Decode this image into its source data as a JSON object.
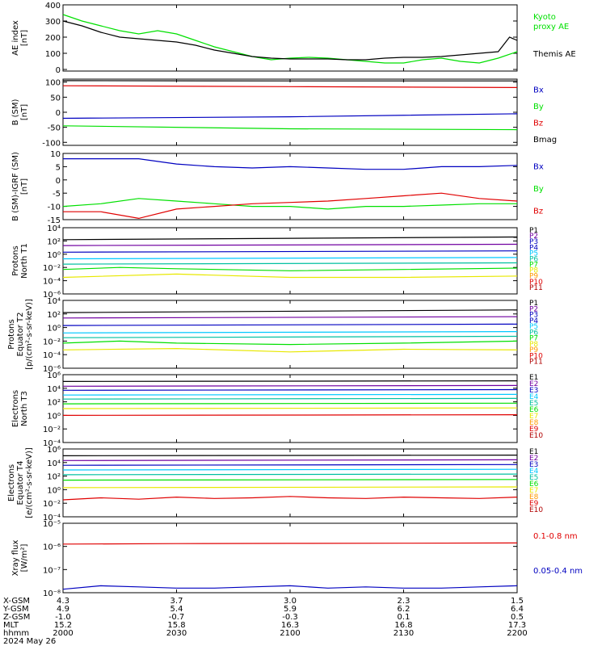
{
  "colors": {
    "black": "#000000",
    "green": "#00e000",
    "blue": "#0000c0",
    "red": "#e00000",
    "purple": "#7000a0",
    "cyan": "#00c8ff",
    "teal": "#00c0a0",
    "yellow": "#e8e800",
    "orange": "#ff9a00",
    "dark_red": "#b00000"
  },
  "chart_data": [
    {
      "type": "line",
      "id": "ae",
      "ylabel": "AE index [nT]",
      "ylim": [
        -10,
        400
      ],
      "yticks": [
        0,
        100,
        200,
        300,
        400
      ],
      "ytick_labels": [
        "0",
        "100",
        "200",
        "300",
        "400"
      ],
      "series": [
        {
          "name": "Kyoto proxy AE",
          "color": "#00e000",
          "x": [
            0,
            5,
            10,
            15,
            20,
            25,
            30,
            35,
            40,
            45,
            50,
            55,
            60,
            65,
            70,
            75,
            80,
            85,
            90,
            95,
            100,
            105,
            110,
            115,
            120
          ],
          "y": [
            340,
            300,
            270,
            240,
            220,
            240,
            220,
            180,
            140,
            110,
            80,
            60,
            70,
            75,
            70,
            60,
            50,
            40,
            40,
            60,
            70,
            50,
            40,
            70,
            110
          ]
        },
        {
          "name": "Themis AE",
          "color": "#000000",
          "x": [
            0,
            5,
            10,
            15,
            20,
            25,
            30,
            35,
            40,
            45,
            50,
            55,
            60,
            65,
            70,
            75,
            80,
            85,
            90,
            95,
            100,
            105,
            110,
            115,
            118,
            120
          ],
          "y": [
            300,
            270,
            230,
            200,
            190,
            180,
            170,
            150,
            120,
            100,
            80,
            70,
            65,
            65,
            65,
            60,
            60,
            70,
            75,
            75,
            80,
            90,
            100,
            110,
            200,
            180
          ]
        }
      ]
    },
    {
      "type": "line",
      "id": "bsm",
      "ylabel": "B (SM) [nT]",
      "ylim": [
        -110,
        110
      ],
      "yticks": [
        -100,
        -50,
        0,
        50,
        100
      ],
      "ytick_labels": [
        "-100",
        "-50",
        "0",
        "50",
        "100"
      ],
      "series": [
        {
          "name": "Bx",
          "color": "#0000c0",
          "x": [
            0,
            60,
            120
          ],
          "y": [
            -20,
            -15,
            -5
          ]
        },
        {
          "name": "By",
          "color": "#00e000",
          "x": [
            0,
            60,
            120
          ],
          "y": [
            -45,
            -55,
            -58
          ]
        },
        {
          "name": "Bz",
          "color": "#e00000",
          "x": [
            0,
            60,
            120
          ],
          "y": [
            88,
            85,
            82
          ]
        },
        {
          "name": "Bmag",
          "color": "#000000",
          "x": [
            0,
            60,
            120
          ],
          "y": [
            105,
            104,
            104
          ]
        }
      ]
    },
    {
      "type": "line",
      "id": "bdiff",
      "ylabel": "B (SM)-IGRF (SM) [nT]",
      "ylim": [
        -15,
        10
      ],
      "yticks": [
        -15,
        -10,
        -5,
        0,
        5,
        10
      ],
      "ytick_labels": [
        "-15",
        "-10",
        "-5",
        "0",
        "5",
        "10"
      ],
      "series": [
        {
          "name": "Bx",
          "color": "#0000c0",
          "x": [
            0,
            10,
            20,
            30,
            40,
            50,
            60,
            70,
            80,
            90,
            100,
            110,
            120
          ],
          "y": [
            8,
            8,
            8,
            6,
            5,
            4.5,
            5,
            4.5,
            4,
            4,
            5,
            5,
            5.5
          ]
        },
        {
          "name": "By",
          "color": "#00e000",
          "x": [
            0,
            10,
            20,
            30,
            40,
            50,
            60,
            70,
            80,
            90,
            100,
            110,
            120
          ],
          "y": [
            -10,
            -9,
            -7,
            -8,
            -9,
            -10,
            -10,
            -11,
            -10,
            -10,
            -9.5,
            -9,
            -9
          ]
        },
        {
          "name": "Bz",
          "color": "#e00000",
          "x": [
            0,
            10,
            20,
            30,
            40,
            50,
            60,
            70,
            80,
            90,
            100,
            110,
            120
          ],
          "y": [
            -12,
            -12,
            -14.5,
            -11,
            -10,
            -9,
            -8.5,
            -8,
            -7,
            -6,
            -5,
            -7,
            -8
          ]
        }
      ]
    },
    {
      "type": "line",
      "id": "pn",
      "ylabel": "Protons North T1",
      "log": true,
      "ylim": [
        -6,
        4
      ],
      "yticks": [
        -6,
        -4,
        -2,
        0,
        2,
        4
      ],
      "ytick_labels": [
        "10⁻⁶",
        "10⁻⁴",
        "10⁻²",
        "10⁰",
        "10²",
        "10⁴"
      ],
      "legend": [
        "P1",
        "P2",
        "P3",
        "P4",
        "P5",
        "P6",
        "P7",
        "P8",
        "P9",
        "P10",
        "P11"
      ],
      "legend_colors": [
        "#000000",
        "#7000a0",
        "#0000c0",
        "#0000c0",
        "#00c8ff",
        "#00c0a0",
        "#00e000",
        "#e8e800",
        "#ff9a00",
        "#e00000",
        "#b00000"
      ],
      "series": [
        {
          "name": "P1",
          "color": "#000000",
          "x": [
            0,
            120
          ],
          "y": [
            2.2,
            2.6
          ]
        },
        {
          "name": "P2",
          "color": "#7000a0",
          "x": [
            0,
            120
          ],
          "y": [
            1.3,
            1.5
          ]
        },
        {
          "name": "P3",
          "color": "#0000c0",
          "x": [
            0,
            120
          ],
          "y": [
            0.3,
            0.5
          ]
        },
        {
          "name": "P4",
          "color": "#00c8ff",
          "x": [
            0,
            120
          ],
          "y": [
            -0.7,
            -0.5
          ]
        },
        {
          "name": "P5",
          "color": "#00c0a0",
          "x": [
            0,
            120
          ],
          "y": [
            -1.5,
            -1.3
          ]
        },
        {
          "name": "P6",
          "color": "#00e000",
          "x": [
            0,
            15,
            30,
            60,
            90,
            120
          ],
          "y": [
            -2.3,
            -2.0,
            -2.2,
            -2.5,
            -2.3,
            -2.1
          ]
        },
        {
          "name": "P7",
          "color": "#e8e800",
          "x": [
            0,
            30,
            60,
            90,
            120
          ],
          "y": [
            -3.5,
            -3.0,
            -3.5,
            -3.5,
            -3.3
          ]
        }
      ]
    },
    {
      "type": "line",
      "id": "pe",
      "ylabel": "Protons Equator T2 [p/(cm²-s-sr-keV)]",
      "log": true,
      "ylim": [
        -6,
        4
      ],
      "yticks": [
        -6,
        -4,
        -2,
        0,
        2,
        4
      ],
      "ytick_labels": [
        "10⁻⁶",
        "10⁻⁴",
        "10⁻²",
        "10⁰",
        "10²",
        "10⁴"
      ],
      "legend": [
        "P1",
        "P2",
        "P3",
        "P4",
        "P5",
        "P6",
        "P7",
        "P8",
        "P9",
        "P10",
        "P11"
      ],
      "legend_colors": [
        "#000000",
        "#7000a0",
        "#0000c0",
        "#0000c0",
        "#00c8ff",
        "#00c0a0",
        "#00e000",
        "#e8e800",
        "#ff9a00",
        "#e00000",
        "#b00000"
      ],
      "series": [
        {
          "name": "P1",
          "color": "#000000",
          "x": [
            0,
            120
          ],
          "y": [
            2.2,
            2.6
          ]
        },
        {
          "name": "P2",
          "color": "#7000a0",
          "x": [
            0,
            120
          ],
          "y": [
            1.4,
            1.6
          ]
        },
        {
          "name": "P3",
          "color": "#0000c0",
          "x": [
            0,
            120
          ],
          "y": [
            0.3,
            0.5
          ]
        },
        {
          "name": "P4",
          "color": "#00c8ff",
          "x": [
            0,
            120
          ],
          "y": [
            -0.8,
            -0.6
          ]
        },
        {
          "name": "P5",
          "color": "#00c0a0",
          "x": [
            0,
            120
          ],
          "y": [
            -1.5,
            -1.3
          ]
        },
        {
          "name": "P6",
          "color": "#00e000",
          "x": [
            0,
            15,
            30,
            60,
            90,
            120
          ],
          "y": [
            -2.3,
            -2.0,
            -2.3,
            -2.5,
            -2.3,
            -2.0
          ]
        },
        {
          "name": "P7",
          "color": "#e8e800",
          "x": [
            0,
            30,
            60,
            90,
            120
          ],
          "y": [
            -3.3,
            -3.1,
            -3.6,
            -3.2,
            -3.3
          ]
        }
      ]
    },
    {
      "type": "line",
      "id": "en",
      "ylabel": "Electrons North T3",
      "log": true,
      "ylim": [
        -4,
        6
      ],
      "yticks": [
        -4,
        -2,
        0,
        2,
        4,
        6
      ],
      "ytick_labels": [
        "10⁻⁴",
        "10⁻²",
        "10⁰",
        "10²",
        "10⁴",
        "10⁶"
      ],
      "legend": [
        "E1",
        "E2",
        "E3",
        "E4",
        "E5",
        "E6",
        "E7",
        "E8",
        "E9",
        "E10"
      ],
      "legend_colors": [
        "#000000",
        "#7000a0",
        "#0000c0",
        "#00c8ff",
        "#00c0a0",
        "#00e000",
        "#e8e800",
        "#ff9a00",
        "#e00000",
        "#b00000"
      ],
      "series": [
        {
          "name": "E1",
          "color": "#000000",
          "x": [
            0,
            120
          ],
          "y": [
            5.0,
            5.1
          ]
        },
        {
          "name": "E2",
          "color": "#7000a0",
          "x": [
            0,
            120
          ],
          "y": [
            4.3,
            4.4
          ]
        },
        {
          "name": "E3",
          "color": "#0000c0",
          "x": [
            0,
            120
          ],
          "y": [
            3.7,
            3.8
          ]
        },
        {
          "name": "E4",
          "color": "#00c8ff",
          "x": [
            0,
            120
          ],
          "y": [
            3.0,
            3.1
          ]
        },
        {
          "name": "E5",
          "color": "#00c0a0",
          "x": [
            0,
            120
          ],
          "y": [
            2.4,
            2.5
          ]
        },
        {
          "name": "E6",
          "color": "#00e000",
          "x": [
            0,
            120
          ],
          "y": [
            1.7,
            1.8
          ]
        },
        {
          "name": "E7",
          "color": "#e8e800",
          "x": [
            0,
            120
          ],
          "y": [
            1.0,
            1.1
          ]
        },
        {
          "name": "E8",
          "color": "#e00000",
          "x": [
            0,
            120
          ],
          "y": [
            0.0,
            0.1
          ]
        }
      ]
    },
    {
      "type": "line",
      "id": "ee",
      "ylabel": "Electrons Equator T4 [e/(cm²-s-sr-keV)]",
      "log": true,
      "ylim": [
        -4,
        6
      ],
      "yticks": [
        -4,
        -2,
        0,
        2,
        4,
        6
      ],
      "ytick_labels": [
        "10⁻⁴",
        "10⁻²",
        "10⁰",
        "10²",
        "10⁴",
        "10⁶"
      ],
      "legend": [
        "E1",
        "E2",
        "E3",
        "E4",
        "E5",
        "E6",
        "E7",
        "E8",
        "E9",
        "E10"
      ],
      "legend_colors": [
        "#000000",
        "#7000a0",
        "#0000c0",
        "#00c8ff",
        "#00c0a0",
        "#00e000",
        "#e8e800",
        "#ff9a00",
        "#e00000",
        "#b00000"
      ],
      "series": [
        {
          "name": "E1",
          "color": "#000000",
          "x": [
            0,
            120
          ],
          "y": [
            5.0,
            5.1
          ]
        },
        {
          "name": "E2",
          "color": "#7000a0",
          "x": [
            0,
            120
          ],
          "y": [
            4.3,
            4.4
          ]
        },
        {
          "name": "E3",
          "color": "#0000c0",
          "x": [
            0,
            120
          ],
          "y": [
            3.6,
            3.7
          ]
        },
        {
          "name": "E4",
          "color": "#00c8ff",
          "x": [
            0,
            120
          ],
          "y": [
            2.9,
            3.0
          ]
        },
        {
          "name": "E5",
          "color": "#00c0a0",
          "x": [
            0,
            120
          ],
          "y": [
            2.2,
            2.3
          ]
        },
        {
          "name": "E6",
          "color": "#00e000",
          "x": [
            0,
            120
          ],
          "y": [
            1.4,
            1.5
          ]
        },
        {
          "name": "E7",
          "color": "#e8e800",
          "x": [
            0,
            120
          ],
          "y": [
            0.3,
            0.4
          ]
        },
        {
          "name": "E8",
          "color": "#e00000",
          "x": [
            0,
            10,
            20,
            30,
            40,
            50,
            60,
            70,
            80,
            90,
            100,
            110,
            120
          ],
          "y": [
            -1.5,
            -1.2,
            -1.4,
            -1.1,
            -1.3,
            -1.2,
            -1.0,
            -1.2,
            -1.3,
            -1.1,
            -1.2,
            -1.3,
            -1.1
          ]
        }
      ]
    },
    {
      "type": "line",
      "id": "xray",
      "ylabel": "Xray flux [W/m²]",
      "log": true,
      "ylim": [
        -8,
        -5
      ],
      "yticks": [
        -8,
        -7,
        -6,
        -5
      ],
      "ytick_labels": [
        "10⁻⁸",
        "10⁻⁷",
        "10⁻⁶",
        "10⁻⁵"
      ],
      "series": [
        {
          "name": "0.1-0.8 nm",
          "color": "#e00000",
          "x": [
            0,
            30,
            60,
            90,
            120
          ],
          "y": [
            -5.9,
            -5.88,
            -5.87,
            -5.86,
            -5.85
          ]
        },
        {
          "name": "0.05-0.4 nm",
          "color": "#0000c0",
          "x": [
            0,
            10,
            20,
            30,
            40,
            50,
            60,
            70,
            80,
            90,
            100,
            110,
            120
          ],
          "y": [
            -7.85,
            -7.7,
            -7.75,
            -7.8,
            -7.8,
            -7.75,
            -7.7,
            -7.8,
            -7.75,
            -7.8,
            -7.8,
            -7.75,
            -7.7
          ]
        }
      ]
    }
  ],
  "panel_labels": {
    "ae": [
      "AE index",
      "[nT]"
    ],
    "bsm": [
      "B (SM)",
      "[nT]"
    ],
    "bdiff": [
      "B (SM)-IGRF (SM)",
      "[nT]"
    ],
    "pn": [
      "Protons",
      "North T1"
    ],
    "pe": [
      "Protons",
      "Equator T2",
      "[p/(cm²-s-sr-keV)]"
    ],
    "en": [
      "Electrons",
      "North T3"
    ],
    "ee": [
      "Electrons",
      "Equator T4",
      "[e/(cm²-s-sr-keV)]"
    ],
    "xray": [
      "Xray flux",
      "[W/m²]"
    ]
  },
  "right_labels": {
    "ae": [
      {
        "text": "Kyoto",
        "color": "#00e000"
      },
      {
        "text": "proxy AE",
        "color": "#00e000"
      },
      {
        "text": "Themis AE",
        "color": "#000000"
      }
    ],
    "bsm": [
      {
        "text": "Bx",
        "color": "#0000c0"
      },
      {
        "text": "By",
        "color": "#00e000"
      },
      {
        "text": "Bz",
        "color": "#e00000"
      },
      {
        "text": "Bmag",
        "color": "#000000"
      }
    ],
    "bdiff": [
      {
        "text": "Bx",
        "color": "#0000c0"
      },
      {
        "text": "By",
        "color": "#00e000"
      },
      {
        "text": "Bz",
        "color": "#e00000"
      }
    ],
    "xray": [
      {
        "text": "0.1-0.8 nm",
        "color": "#e00000"
      },
      {
        "text": "0.05-0.4 nm",
        "color": "#0000c0"
      }
    ]
  },
  "x_axis": {
    "row_labels": [
      "X-GSM",
      "Y-GSM",
      "Z-GSM",
      "MLT",
      "hhmm",
      "2024 May 26"
    ],
    "ticks": [
      {
        "x": 0,
        "values": [
          "4.3",
          "4.9",
          "-1.0",
          "15.2",
          "2000"
        ]
      },
      {
        "x": 30,
        "values": [
          "3.7",
          "5.4",
          "-0.7",
          "15.8",
          "2030"
        ]
      },
      {
        "x": 60,
        "values": [
          "3.0",
          "5.9",
          "-0.3",
          "16.3",
          "2100"
        ]
      },
      {
        "x": 90,
        "values": [
          "2.3",
          "6.2",
          "0.1",
          "16.8",
          "2130"
        ]
      },
      {
        "x": 120,
        "values": [
          "1.5",
          "6.4",
          "0.5",
          "17.3",
          "2200"
        ]
      }
    ]
  }
}
